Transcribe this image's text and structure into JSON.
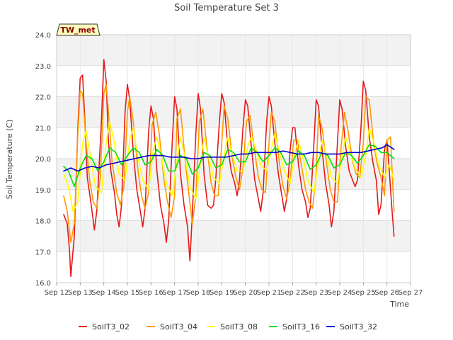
{
  "chart_data": {
    "type": "line",
    "title": "Soil Temperature Set 3",
    "xlabel": "Time",
    "ylabel": "Soil Temperature (C)",
    "station_label": "TW_met",
    "xlim": [
      12,
      27
    ],
    "ylim": [
      16.0,
      24.0
    ],
    "xticks": [
      12,
      13,
      14,
      15,
      16,
      17,
      18,
      19,
      20,
      21,
      22,
      23,
      24,
      25,
      26,
      27
    ],
    "xtick_labels": [
      "Sep 12",
      "Sep 13",
      "Sep 14",
      "Sep 15",
      "Sep 16",
      "Sep 17",
      "Sep 18",
      "Sep 19",
      "Sep 20",
      "Sep 21",
      "Sep 22",
      "Sep 23",
      "Sep 24",
      "Sep 25",
      "Sep 26",
      "Sep 27"
    ],
    "yticks": [
      16.0,
      17.0,
      18.0,
      19.0,
      20.0,
      21.0,
      22.0,
      23.0,
      24.0
    ],
    "ytick_labels": [
      "16.0",
      "17.0",
      "18.0",
      "19.0",
      "20.0",
      "21.0",
      "22.0",
      "23.0",
      "24.0"
    ],
    "grid": true,
    "legend_position": "bottom",
    "series": [
      {
        "name": "SoilT3_02",
        "color": "#e41a1c",
        "x": [
          12.3,
          12.45,
          12.55,
          12.6,
          12.75,
          12.9,
          13.0,
          13.1,
          13.2,
          13.3,
          13.45,
          13.55,
          13.6,
          13.7,
          13.9,
          14.0,
          14.1,
          14.2,
          14.3,
          14.45,
          14.55,
          14.65,
          14.75,
          14.9,
          15.0,
          15.1,
          15.25,
          15.4,
          15.55,
          15.65,
          15.75,
          15.9,
          16.0,
          16.1,
          16.25,
          16.4,
          16.55,
          16.65,
          16.75,
          16.9,
          17.0,
          17.1,
          17.25,
          17.4,
          17.55,
          17.65,
          17.75,
          17.9,
          18.0,
          18.1,
          18.25,
          18.4,
          18.55,
          18.65,
          18.75,
          18.9,
          19.0,
          19.1,
          19.25,
          19.4,
          19.55,
          19.65,
          19.75,
          19.9,
          20.0,
          20.1,
          20.25,
          20.4,
          20.55,
          20.65,
          20.75,
          20.9,
          21.0,
          21.1,
          21.25,
          21.4,
          21.55,
          21.65,
          21.75,
          21.9,
          22.0,
          22.1,
          22.25,
          22.4,
          22.55,
          22.65,
          22.75,
          22.9,
          23.0,
          23.1,
          23.25,
          23.4,
          23.55,
          23.65,
          23.75,
          23.9,
          24.0,
          24.1,
          24.25,
          24.4,
          24.55,
          24.65,
          24.75,
          24.9,
          25.0,
          25.1,
          25.25,
          25.4,
          25.55,
          25.65,
          25.75,
          25.9,
          26.0,
          26.1,
          26.2,
          26.3
        ],
        "y": [
          18.2,
          17.9,
          17.0,
          16.2,
          17.5,
          21.0,
          22.6,
          22.7,
          21.2,
          19.4,
          18.6,
          18.0,
          17.7,
          18.3,
          21.2,
          23.2,
          22.5,
          20.5,
          19.6,
          18.9,
          18.2,
          17.8,
          18.5,
          21.5,
          22.4,
          21.9,
          20.2,
          19.0,
          18.3,
          17.8,
          18.4,
          20.9,
          21.7,
          21.3,
          19.6,
          18.5,
          17.9,
          17.3,
          18.0,
          20.5,
          22.0,
          21.6,
          19.5,
          18.5,
          17.8,
          16.7,
          18.2,
          20.8,
          22.1,
          21.6,
          19.5,
          18.5,
          18.4,
          18.5,
          19.4,
          21.2,
          22.1,
          21.8,
          20.4,
          19.6,
          19.2,
          18.8,
          19.3,
          21.0,
          21.9,
          21.7,
          20.4,
          19.3,
          18.7,
          18.3,
          18.9,
          21.2,
          22.0,
          21.7,
          20.5,
          19.5,
          18.8,
          18.3,
          18.7,
          20.3,
          21.0,
          21.0,
          19.8,
          19.0,
          18.6,
          18.1,
          18.4,
          20.4,
          21.9,
          21.7,
          20.3,
          19.2,
          18.5,
          17.8,
          18.3,
          20.5,
          21.9,
          21.6,
          20.4,
          19.6,
          19.3,
          19.1,
          19.3,
          21.0,
          22.5,
          22.2,
          20.7,
          19.9,
          19.3,
          18.2,
          18.5,
          20.3,
          20.6,
          19.6,
          18.5,
          17.5
        ]
      },
      {
        "name": "SoilT3_04",
        "color": "#ff9900",
        "x": [
          12.3,
          12.45,
          12.6,
          12.75,
          12.9,
          13.0,
          13.1,
          13.25,
          13.4,
          13.55,
          13.7,
          13.85,
          14.0,
          14.1,
          14.2,
          14.35,
          14.55,
          14.7,
          14.85,
          15.0,
          15.1,
          15.25,
          15.45,
          15.6,
          15.75,
          15.9,
          16.05,
          16.2,
          16.35,
          16.55,
          16.7,
          16.85,
          17.0,
          17.1,
          17.25,
          17.45,
          17.6,
          17.75,
          17.9,
          18.05,
          18.2,
          18.35,
          18.55,
          18.7,
          18.85,
          19.0,
          19.1,
          19.25,
          19.45,
          19.6,
          19.75,
          19.9,
          20.05,
          20.2,
          20.35,
          20.55,
          20.7,
          20.85,
          21.0,
          21.1,
          21.25,
          21.45,
          21.6,
          21.75,
          21.9,
          22.05,
          22.2,
          22.35,
          22.55,
          22.7,
          22.85,
          23.0,
          23.1,
          23.25,
          23.45,
          23.6,
          23.75,
          23.9,
          24.05,
          24.2,
          24.35,
          24.55,
          24.7,
          24.85,
          25.0,
          25.1,
          25.25,
          25.45,
          25.6,
          25.75,
          25.9,
          26.0,
          26.15,
          26.3
        ],
        "y": [
          18.8,
          18.3,
          17.3,
          17.9,
          20.8,
          22.2,
          22.1,
          20.5,
          19.3,
          18.6,
          18.4,
          19.4,
          22.1,
          22.4,
          21.5,
          19.9,
          18.9,
          18.5,
          19.1,
          21.5,
          22.0,
          21.2,
          19.6,
          18.8,
          18.4,
          18.9,
          21.1,
          21.5,
          20.8,
          19.3,
          18.6,
          18.1,
          18.8,
          21.3,
          21.6,
          19.9,
          18.9,
          17.9,
          18.8,
          21.2,
          21.6,
          20.5,
          19.2,
          18.8,
          18.8,
          20.5,
          21.7,
          21.3,
          20.0,
          19.4,
          19.0,
          19.7,
          21.2,
          21.4,
          20.5,
          19.4,
          19.0,
          18.9,
          20.5,
          21.5,
          21.2,
          19.8,
          19.1,
          18.7,
          19.3,
          20.6,
          20.6,
          19.9,
          19.0,
          18.6,
          18.4,
          19.5,
          21.4,
          21.0,
          19.8,
          19.0,
          18.6,
          18.6,
          20.3,
          21.5,
          20.9,
          19.9,
          19.5,
          19.4,
          20.5,
          22.0,
          21.9,
          20.4,
          19.8,
          19.4,
          18.8,
          20.6,
          20.7,
          18.3
        ]
      },
      {
        "name": "SoilT3_08",
        "color": "#ffff00",
        "x": [
          12.3,
          12.5,
          12.7,
          12.9,
          13.1,
          13.25,
          13.45,
          13.65,
          13.9,
          14.1,
          14.25,
          14.45,
          14.65,
          14.9,
          15.1,
          15.25,
          15.45,
          15.65,
          15.9,
          16.1,
          16.25,
          16.45,
          16.65,
          16.9,
          17.1,
          17.25,
          17.45,
          17.65,
          17.9,
          18.1,
          18.25,
          18.45,
          18.65,
          18.9,
          19.1,
          19.25,
          19.45,
          19.65,
          19.9,
          20.1,
          20.25,
          20.45,
          20.65,
          20.9,
          21.1,
          21.25,
          21.45,
          21.65,
          21.9,
          22.1,
          22.25,
          22.45,
          22.65,
          22.9,
          23.1,
          23.25,
          23.45,
          23.65,
          23.9,
          24.1,
          24.25,
          24.45,
          24.65,
          24.9,
          25.1,
          25.25,
          25.45,
          25.65,
          25.9,
          26.1,
          26.3
        ],
        "y": [
          19.5,
          19.1,
          18.3,
          18.6,
          20.5,
          20.9,
          20.0,
          19.1,
          18.9,
          20.5,
          21.2,
          20.5,
          19.5,
          19.3,
          20.6,
          21.0,
          20.0,
          19.3,
          19.0,
          20.3,
          20.7,
          20.0,
          19.2,
          18.8,
          19.9,
          20.7,
          20.0,
          19.1,
          18.7,
          19.9,
          20.7,
          20.0,
          19.4,
          19.2,
          20.1,
          20.7,
          20.1,
          19.6,
          19.6,
          20.4,
          20.7,
          20.3,
          19.8,
          19.6,
          20.3,
          20.8,
          20.2,
          19.6,
          19.2,
          20.2,
          20.6,
          20.0,
          19.3,
          18.9,
          19.9,
          20.6,
          20.1,
          19.4,
          19.2,
          20.1,
          20.7,
          20.2,
          19.7,
          19.4,
          20.1,
          21.0,
          20.5,
          19.8,
          19.4,
          19.8,
          19.3
        ]
      },
      {
        "name": "SoilT3_16",
        "color": "#00e000",
        "x": [
          12.3,
          12.5,
          12.75,
          13.0,
          13.25,
          13.5,
          13.75,
          14.0,
          14.25,
          14.5,
          14.75,
          15.0,
          15.25,
          15.5,
          15.75,
          16.0,
          16.25,
          16.5,
          16.75,
          17.0,
          17.25,
          17.5,
          17.75,
          18.0,
          18.25,
          18.5,
          18.75,
          19.0,
          19.25,
          19.5,
          19.75,
          20.0,
          20.25,
          20.5,
          20.75,
          21.0,
          21.25,
          21.5,
          21.75,
          22.0,
          22.25,
          22.5,
          22.75,
          23.0,
          23.25,
          23.5,
          23.75,
          24.0,
          24.25,
          24.5,
          24.75,
          25.0,
          25.25,
          25.5,
          25.75,
          26.0,
          26.3
        ],
        "y": [
          19.75,
          19.6,
          19.1,
          19.7,
          20.1,
          20.0,
          19.6,
          19.9,
          20.35,
          20.2,
          19.8,
          20.1,
          20.35,
          20.2,
          19.8,
          19.9,
          20.3,
          20.1,
          19.6,
          19.6,
          20.1,
          20.0,
          19.5,
          19.7,
          20.2,
          20.1,
          19.7,
          19.8,
          20.3,
          20.2,
          19.9,
          19.9,
          20.35,
          20.2,
          19.9,
          20.1,
          20.35,
          20.2,
          19.8,
          19.9,
          20.25,
          20.1,
          19.65,
          19.8,
          20.2,
          20.1,
          19.7,
          19.8,
          20.2,
          20.1,
          19.85,
          20.1,
          20.45,
          20.4,
          20.2,
          20.2,
          20.0
        ]
      },
      {
        "name": "SoilT3_32",
        "color": "#0000cc",
        "x": [
          12.3,
          12.6,
          12.9,
          13.2,
          13.5,
          13.8,
          14.1,
          14.4,
          14.7,
          15.0,
          15.3,
          15.6,
          15.9,
          16.2,
          16.5,
          16.8,
          17.1,
          17.4,
          17.7,
          18.0,
          18.3,
          18.6,
          18.9,
          19.2,
          19.5,
          19.8,
          20.1,
          20.4,
          20.7,
          21.0,
          21.3,
          21.6,
          21.9,
          22.2,
          22.5,
          22.8,
          23.1,
          23.4,
          23.7,
          24.0,
          24.3,
          24.6,
          24.9,
          25.2,
          25.5,
          25.8,
          26.0,
          26.3
        ],
        "y": [
          19.6,
          19.7,
          19.6,
          19.7,
          19.75,
          19.7,
          19.8,
          19.85,
          19.9,
          19.95,
          20.0,
          20.05,
          20.1,
          20.1,
          20.1,
          20.05,
          20.05,
          20.05,
          20.0,
          20.0,
          20.05,
          20.05,
          20.05,
          20.05,
          20.1,
          20.15,
          20.15,
          20.2,
          20.2,
          20.2,
          20.2,
          20.25,
          20.2,
          20.15,
          20.15,
          20.2,
          20.2,
          20.15,
          20.15,
          20.15,
          20.2,
          20.2,
          20.2,
          20.25,
          20.3,
          20.35,
          20.45,
          20.3
        ]
      }
    ]
  }
}
